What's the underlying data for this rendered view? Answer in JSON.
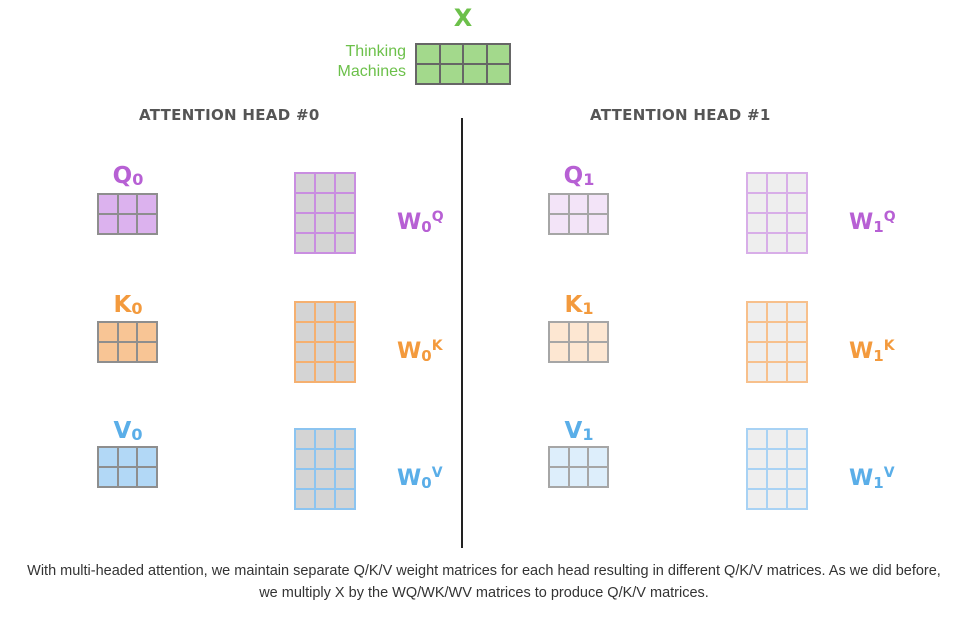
{
  "x_block": {
    "title": "X",
    "words": [
      "Thinking",
      "Machines"
    ]
  },
  "heads": [
    {
      "title": "ATTENTION HEAD #0",
      "q": {
        "letter": "Q",
        "sub": "0"
      },
      "k": {
        "letter": "K",
        "sub": "0"
      },
      "v": {
        "letter": "V",
        "sub": "0"
      },
      "wq": {
        "letter": "W",
        "sub": "0",
        "sup": "Q"
      },
      "wk": {
        "letter": "W",
        "sub": "0",
        "sup": "K"
      },
      "wv": {
        "letter": "W",
        "sub": "0",
        "sup": "V"
      }
    },
    {
      "title": "ATTENTION HEAD #1",
      "q": {
        "letter": "Q",
        "sub": "1"
      },
      "k": {
        "letter": "K",
        "sub": "1"
      },
      "v": {
        "letter": "V",
        "sub": "1"
      },
      "wq": {
        "letter": "W",
        "sub": "1",
        "sup": "Q"
      },
      "wk": {
        "letter": "W",
        "sub": "1",
        "sup": "K"
      },
      "wv": {
        "letter": "W",
        "sub": "1",
        "sup": "V"
      }
    }
  ],
  "colors": {
    "x": "#6cc04a",
    "q": "#b760d4",
    "k": "#f39a3d",
    "v": "#5aaee8",
    "divider": "#222222"
  },
  "caption": "With multi-headed attention, we maintain separate Q/K/V weight matrices for each head resulting in different Q/K/V matrices. As we did before, we multiply X by the WQ/WK/WV matrices to produce Q/K/V matrices."
}
